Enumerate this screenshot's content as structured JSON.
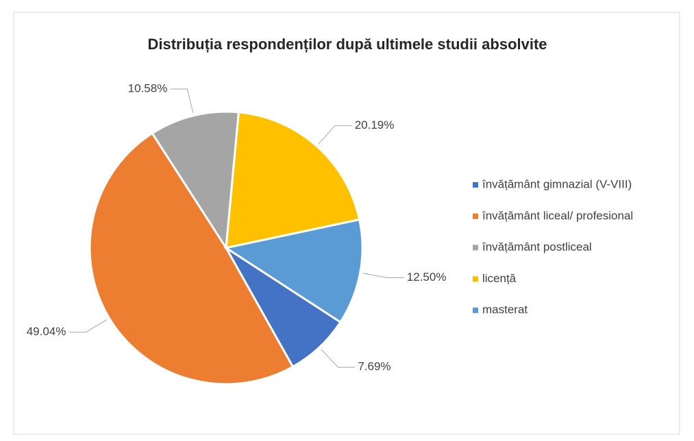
{
  "chart_data": {
    "type": "pie",
    "title": "Distribuția respondenților după ultimele studii absolvite",
    "categories": [
      "învățământ gimnazial (V-VIII)",
      "învățământ liceal/ profesional",
      "învățământ postliceal",
      "licență",
      "masterat"
    ],
    "values": [
      7.69,
      49.04,
      10.58,
      20.19,
      12.5
    ],
    "value_labels": [
      "7.69%",
      "49.04%",
      "10.58%",
      "20.19%",
      "12.50%"
    ],
    "colors": [
      "#4472c4",
      "#ed7d31",
      "#a5a5a5",
      "#ffc000",
      "#5b9bd5"
    ],
    "legend": "right"
  }
}
